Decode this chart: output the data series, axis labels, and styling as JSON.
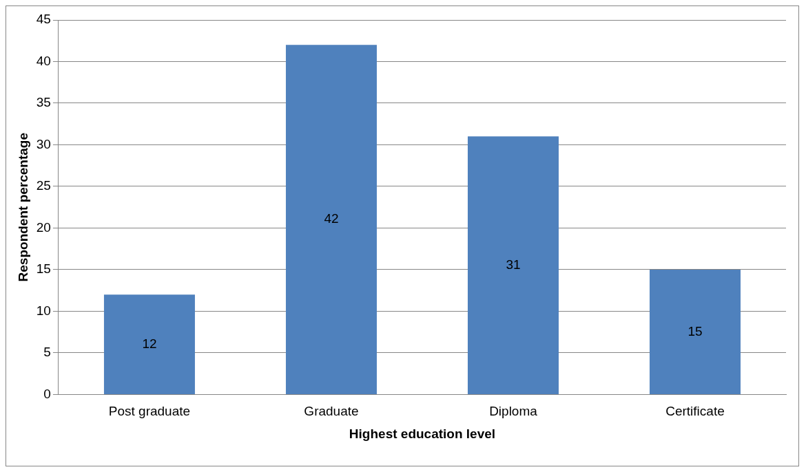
{
  "chart_data": {
    "type": "bar",
    "xlabel": "Highest education level",
    "ylabel": "Respondent percentage",
    "categories": [
      "Post graduate",
      "Graduate",
      "Diploma",
      "Certificate"
    ],
    "values": [
      12,
      42,
      31,
      15
    ],
    "color": "#4f81bd",
    "ylim": [
      0,
      45
    ],
    "yticks": [
      0,
      5,
      10,
      15,
      20,
      25,
      30,
      35,
      40,
      45
    ],
    "grid": "y",
    "data_labels": true,
    "legend": false
  }
}
